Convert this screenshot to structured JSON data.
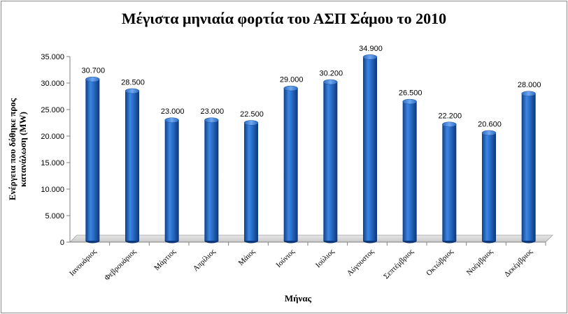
{
  "chart_data": {
    "type": "bar",
    "title": "Μέγιστα μηνιαία φορτία του ΑΣΠ Σάμου το 2010",
    "xlabel": "Μήνας",
    "ylabel_lines": [
      "Ενέργεια που δόθηκε προς",
      "κατανάλωση (MW)"
    ],
    "categories": [
      "Ιανουάριος",
      "Φεβρουάριος",
      "Μάρτιος",
      "Απρίλιος",
      "Μάιος",
      "Ιούνιος",
      "Ιούλιος",
      "Αύγουστος",
      "Σεπτέμβριος",
      "Οκτώβριος",
      "Νοέμβριος",
      "Δεκέμβριος"
    ],
    "values": [
      30700,
      28500,
      23000,
      23000,
      22500,
      29000,
      30200,
      34900,
      26500,
      22200,
      20600,
      28000
    ],
    "value_labels": [
      "30.700",
      "28.500",
      "23.000",
      "23.000",
      "22.500",
      "29.000",
      "30.200",
      "34.900",
      "26.500",
      "22.200",
      "20.600",
      "28.000"
    ],
    "ylim": [
      0,
      35000
    ],
    "yticks": [
      0,
      5000,
      10000,
      15000,
      20000,
      25000,
      30000,
      35000
    ],
    "ytick_labels": [
      "0",
      "5.000",
      "10.000",
      "15.000",
      "20.000",
      "25.000",
      "30.000",
      "35.000"
    ],
    "grid": false,
    "legend": "none",
    "bar_color": "#1f5fb0"
  }
}
